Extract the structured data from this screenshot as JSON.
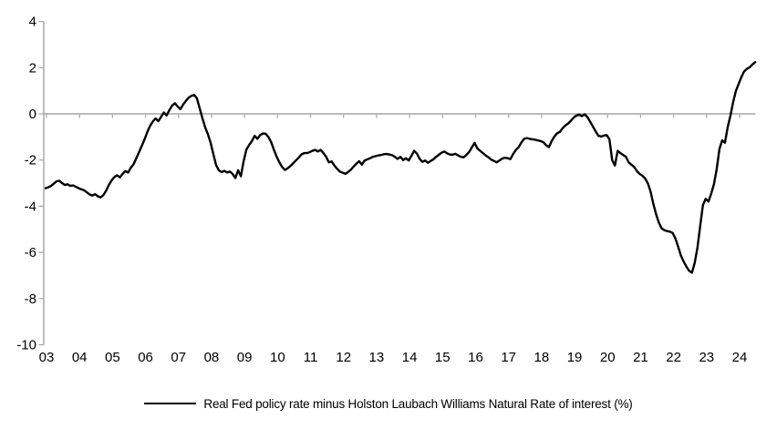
{
  "chart_data": {
    "type": "line",
    "title": "",
    "xlabel": "",
    "ylabel": "",
    "ylim": [
      -10,
      4
    ],
    "grid": "zero-line-only",
    "legend_position": "bottom-center",
    "axis_color": "#A6A6A6",
    "background_color": "#FFFFFF",
    "y_ticks": [
      4,
      2,
      0,
      -2,
      -4,
      -6,
      -8,
      -10
    ],
    "y_tick_labels": [
      "4",
      "2",
      "0",
      "-2",
      "-4",
      "-6",
      "-8",
      "-10"
    ],
    "x_tick_labels": [
      "03",
      "04",
      "05",
      "06",
      "07",
      "08",
      "09",
      "10",
      "11",
      "12",
      "13",
      "14",
      "15",
      "16",
      "17",
      "18",
      "19",
      "20",
      "21",
      "22",
      "23",
      "24"
    ],
    "x_start_year": 2003,
    "frequency": "monthly",
    "series": [
      {
        "name": "Real Fed policy rate minus Holston Laubach Williams Natural Rate of interest (%)",
        "color": "#000000",
        "values": [
          -3.22,
          -3.18,
          -3.12,
          -3.02,
          -2.92,
          -2.9,
          -3.0,
          -3.08,
          -3.05,
          -3.12,
          -3.1,
          -3.16,
          -3.22,
          -3.27,
          -3.31,
          -3.4,
          -3.49,
          -3.54,
          -3.48,
          -3.57,
          -3.62,
          -3.52,
          -3.33,
          -3.08,
          -2.88,
          -2.74,
          -2.66,
          -2.75,
          -2.6,
          -2.48,
          -2.54,
          -2.33,
          -2.18,
          -1.92,
          -1.65,
          -1.38,
          -1.1,
          -0.78,
          -0.52,
          -0.33,
          -0.2,
          -0.32,
          -0.13,
          0.06,
          -0.07,
          0.16,
          0.36,
          0.46,
          0.32,
          0.2,
          0.4,
          0.56,
          0.7,
          0.78,
          0.82,
          0.68,
          0.25,
          -0.18,
          -0.58,
          -0.88,
          -1.25,
          -1.75,
          -2.22,
          -2.45,
          -2.52,
          -2.47,
          -2.54,
          -2.5,
          -2.6,
          -2.78,
          -2.44,
          -2.7,
          -2.05,
          -1.55,
          -1.35,
          -1.18,
          -0.95,
          -1.08,
          -0.92,
          -0.85,
          -0.86,
          -1.0,
          -1.22,
          -1.55,
          -1.85,
          -2.1,
          -2.3,
          -2.43,
          -2.36,
          -2.26,
          -2.14,
          -2.02,
          -1.9,
          -1.76,
          -1.7,
          -1.7,
          -1.66,
          -1.6,
          -1.56,
          -1.63,
          -1.56,
          -1.7,
          -1.86,
          -2.1,
          -2.06,
          -2.24,
          -2.38,
          -2.5,
          -2.55,
          -2.6,
          -2.52,
          -2.42,
          -2.28,
          -2.16,
          -2.05,
          -2.2,
          -2.02,
          -1.97,
          -1.92,
          -1.86,
          -1.83,
          -1.8,
          -1.78,
          -1.75,
          -1.74,
          -1.76,
          -1.79,
          -1.86,
          -1.95,
          -1.86,
          -2.0,
          -1.92,
          -2.02,
          -1.82,
          -1.6,
          -1.72,
          -1.95,
          -2.08,
          -2.02,
          -2.12,
          -2.04,
          -1.97,
          -1.86,
          -1.77,
          -1.68,
          -1.63,
          -1.71,
          -1.76,
          -1.77,
          -1.73,
          -1.8,
          -1.86,
          -1.88,
          -1.78,
          -1.65,
          -1.45,
          -1.26,
          -1.5,
          -1.6,
          -1.7,
          -1.8,
          -1.88,
          -1.98,
          -2.04,
          -2.1,
          -2.02,
          -1.94,
          -1.9,
          -1.92,
          -1.96,
          -1.74,
          -1.56,
          -1.44,
          -1.24,
          -1.08,
          -1.05,
          -1.08,
          -1.1,
          -1.12,
          -1.15,
          -1.18,
          -1.23,
          -1.36,
          -1.44,
          -1.18,
          -0.98,
          -0.84,
          -0.78,
          -0.62,
          -0.5,
          -0.42,
          -0.3,
          -0.16,
          -0.08,
          -0.03,
          -0.1,
          -0.02,
          -0.14,
          -0.34,
          -0.55,
          -0.76,
          -0.95,
          -0.98,
          -0.94,
          -0.92,
          -1.1,
          -2.0,
          -2.24,
          -1.6,
          -1.7,
          -1.78,
          -1.86,
          -2.1,
          -2.2,
          -2.3,
          -2.48,
          -2.6,
          -2.68,
          -2.8,
          -3.02,
          -3.38,
          -3.92,
          -4.36,
          -4.72,
          -4.96,
          -5.04,
          -5.08,
          -5.1,
          -5.16,
          -5.4,
          -5.76,
          -6.14,
          -6.4,
          -6.62,
          -6.8,
          -6.88,
          -6.46,
          -5.8,
          -4.86,
          -3.95,
          -3.68,
          -3.8,
          -3.46,
          -3.05,
          -2.4,
          -1.52,
          -1.15,
          -1.25,
          -0.58,
          -0.08,
          0.52,
          1.0,
          1.3,
          1.6,
          1.84,
          1.95,
          2.02,
          2.14,
          2.24
        ]
      }
    ]
  },
  "legend": {
    "label": "Real Fed policy rate minus Holston Laubach Williams Natural Rate of interest (%)"
  }
}
